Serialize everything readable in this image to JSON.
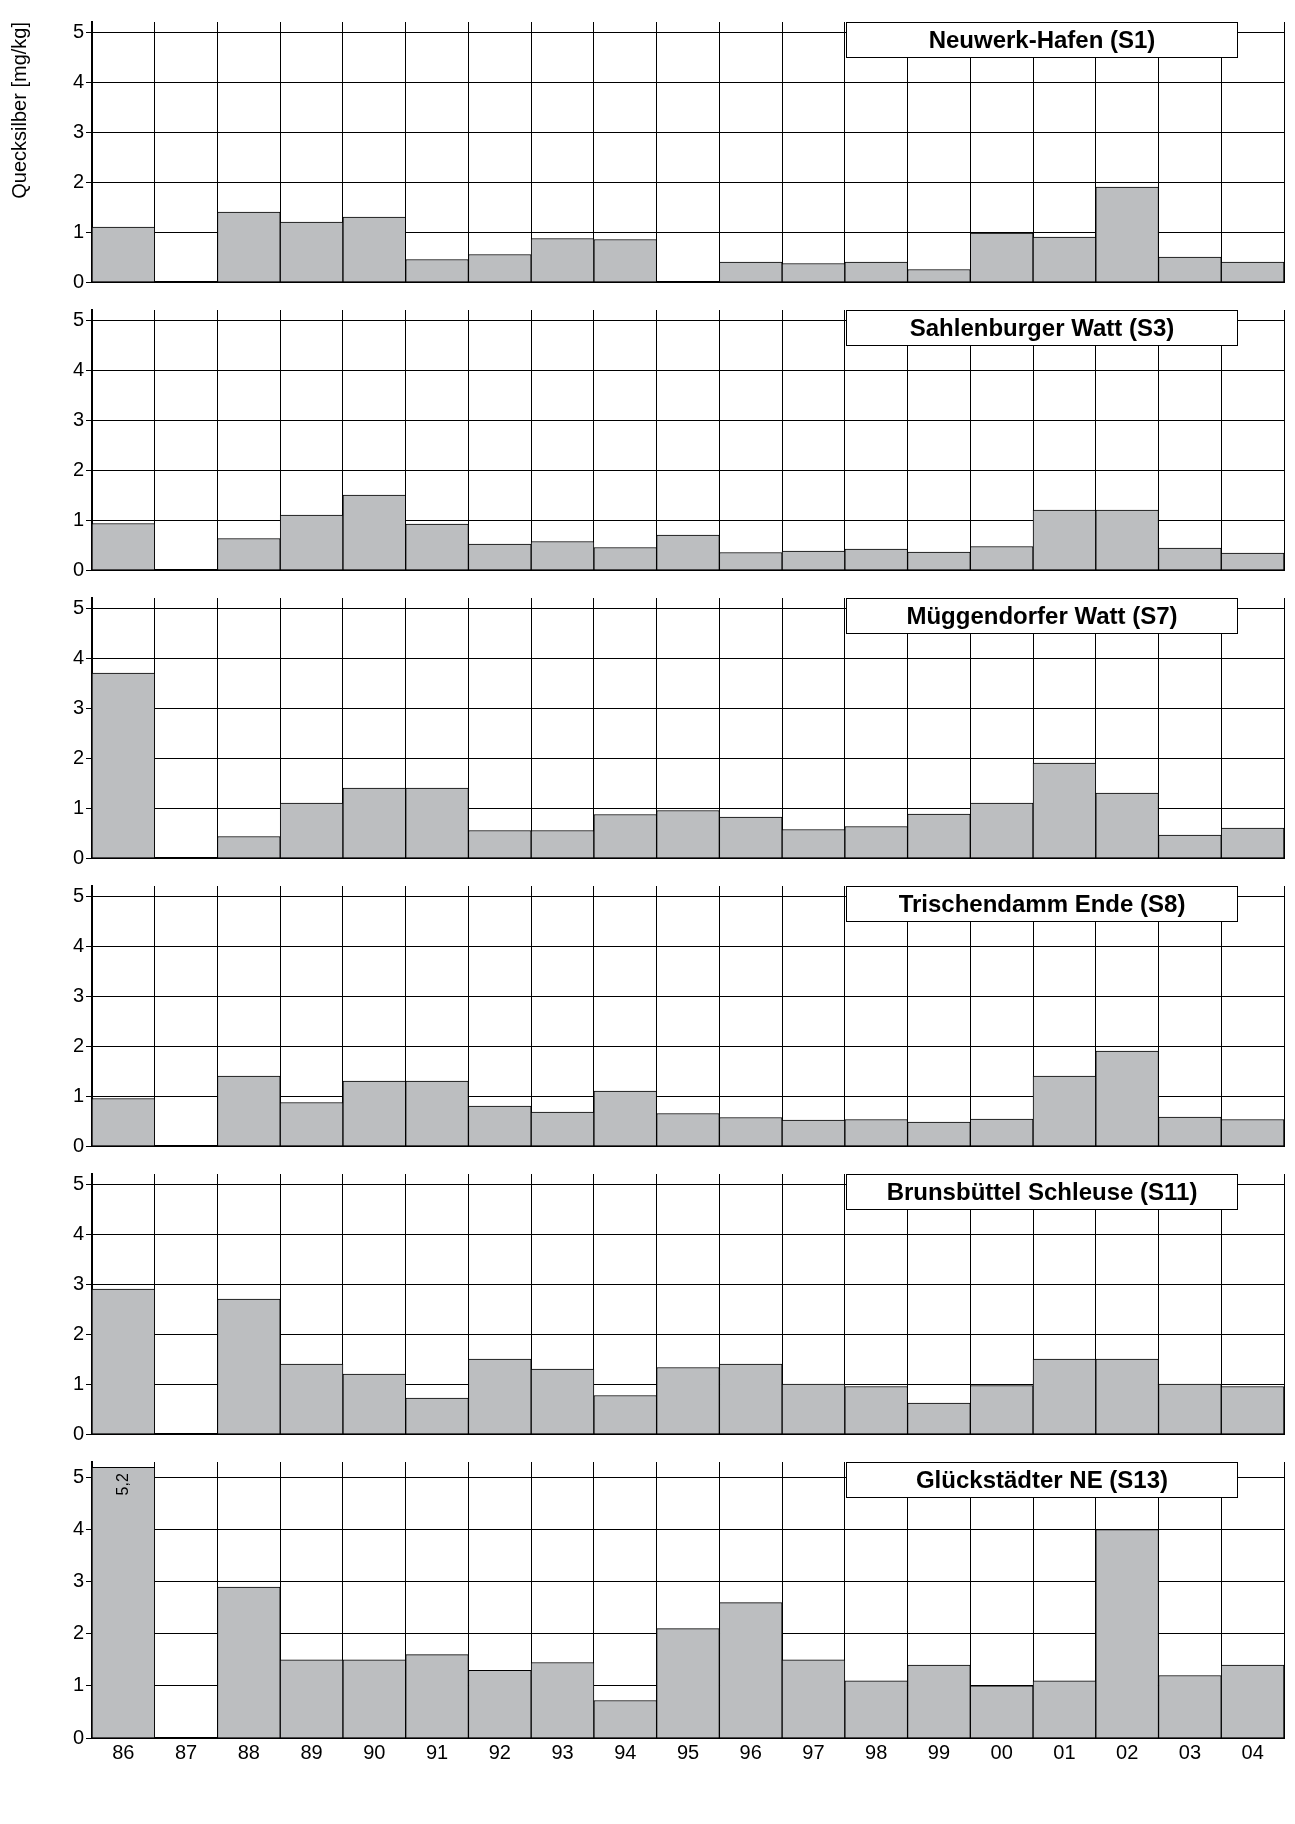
{
  "chart_data": [
    {
      "type": "bar",
      "title": "Neuwerk-Hafen (S1)",
      "ylabel": "Quecksilber [mg/kg]",
      "categories": [
        "86",
        "87",
        "88",
        "89",
        "90",
        "91",
        "92",
        "93",
        "94",
        "95",
        "96",
        "97",
        "98",
        "99",
        "00",
        "01",
        "02",
        "03",
        "04"
      ],
      "series": [
        {
          "color": "#bcbec0",
          "values": [
            1.1,
            0,
            1.4,
            1.2,
            1.3,
            0.45,
            0.55,
            0.87,
            0.85,
            0,
            0.4,
            0.37,
            0.4,
            0.25,
            0.98,
            0.9,
            1.9,
            0.5,
            0.4
          ]
        }
      ],
      "ylim": [
        0,
        5.2
      ],
      "yticks": [
        0,
        1,
        2,
        3,
        4,
        5
      ],
      "grid": true,
      "tick_labels": "y"
    },
    {
      "type": "bar",
      "title": "Sahlenburger Watt (S3)",
      "categories": [
        "86",
        "87",
        "88",
        "89",
        "90",
        "91",
        "92",
        "93",
        "94",
        "95",
        "96",
        "97",
        "98",
        "99",
        "00",
        "01",
        "02",
        "03",
        "04"
      ],
      "series": [
        {
          "color": "#bcbec0",
          "values": [
            0.93,
            0,
            0.63,
            1.1,
            1.5,
            0.92,
            0.52,
            0.57,
            0.45,
            0.7,
            0.35,
            0.38,
            0.42,
            0.36,
            0.47,
            1.2,
            1.2,
            0.44,
            0.34
          ]
        }
      ],
      "ylim": [
        0,
        5.2
      ],
      "yticks": [
        0,
        1,
        2,
        3,
        4,
        5
      ],
      "grid": true,
      "tick_labels": "y"
    },
    {
      "type": "bar",
      "title": "Müggendorfer Watt (S7)",
      "categories": [
        "86",
        "87",
        "88",
        "89",
        "90",
        "91",
        "92",
        "93",
        "94",
        "95",
        "96",
        "97",
        "98",
        "99",
        "00",
        "01",
        "02",
        "03",
        "04"
      ],
      "series": [
        {
          "color": "#bcbec0",
          "values": [
            3.7,
            0,
            0.43,
            1.1,
            1.4,
            1.4,
            0.55,
            0.55,
            0.87,
            0.95,
            0.82,
            0.57,
            0.63,
            0.88,
            1.1,
            1.9,
            1.3,
            0.46,
            0.6
          ]
        }
      ],
      "ylim": [
        0,
        5.2
      ],
      "yticks": [
        0,
        1,
        2,
        3,
        4,
        5
      ],
      "grid": true,
      "tick_labels": "y"
    },
    {
      "type": "bar",
      "title": "Trischendamm Ende (S8)",
      "categories": [
        "86",
        "87",
        "88",
        "89",
        "90",
        "91",
        "92",
        "93",
        "94",
        "95",
        "96",
        "97",
        "98",
        "99",
        "00",
        "01",
        "02",
        "03",
        "04"
      ],
      "series": [
        {
          "color": "#bcbec0",
          "values": [
            0.95,
            0,
            1.4,
            0.87,
            1.3,
            1.3,
            0.8,
            0.68,
            1.1,
            0.65,
            0.57,
            0.52,
            0.53,
            0.48,
            0.54,
            1.4,
            1.9,
            0.58,
            0.53
          ]
        }
      ],
      "ylim": [
        0,
        5.2
      ],
      "yticks": [
        0,
        1,
        2,
        3,
        4,
        5
      ],
      "grid": true,
      "tick_labels": "y"
    },
    {
      "type": "bar",
      "title": "Brunsbüttel Schleuse (S11)",
      "categories": [
        "86",
        "87",
        "88",
        "89",
        "90",
        "91",
        "92",
        "93",
        "94",
        "95",
        "96",
        "97",
        "98",
        "99",
        "00",
        "01",
        "02",
        "03",
        "04"
      ],
      "series": [
        {
          "color": "#bcbec0",
          "values": [
            2.9,
            0,
            2.7,
            1.4,
            1.2,
            0.72,
            1.5,
            1.3,
            0.77,
            1.33,
            1.4,
            1.0,
            0.95,
            0.62,
            0.97,
            1.5,
            1.5,
            1.0,
            0.95
          ]
        }
      ],
      "ylim": [
        0,
        5.2
      ],
      "yticks": [
        0,
        1,
        2,
        3,
        4,
        5
      ],
      "grid": true,
      "tick_labels": "y"
    },
    {
      "type": "bar",
      "title": "Glückstädter NE (S13)",
      "categories": [
        "86",
        "87",
        "88",
        "89",
        "90",
        "91",
        "92",
        "93",
        "94",
        "95",
        "96",
        "97",
        "98",
        "99",
        "00",
        "01",
        "02",
        "03",
        "04"
      ],
      "series": [
        {
          "color": "#bcbec0",
          "values": [
            5.2,
            0,
            2.9,
            1.5,
            1.5,
            1.6,
            1.3,
            1.45,
            0.72,
            2.1,
            2.6,
            1.5,
            1.1,
            1.4,
            1.0,
            1.1,
            4.0,
            1.2,
            1.4
          ],
          "value_labels": [
            "5,2",
            null,
            null,
            null,
            null,
            null,
            null,
            null,
            null,
            null,
            null,
            null,
            null,
            null,
            null,
            null,
            null,
            null,
            null
          ]
        }
      ],
      "ylim": [
        0,
        5.3
      ],
      "yticks": [
        0,
        1,
        2,
        3,
        4,
        5
      ],
      "grid": true
    }
  ]
}
